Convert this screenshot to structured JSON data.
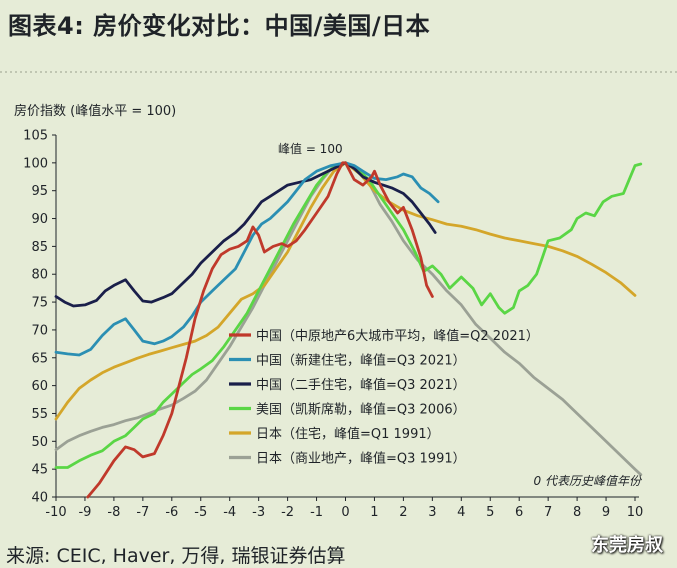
{
  "title": "图表4: 房价变化对比：中国/美国/日本",
  "source": "来源: CEIC, Haver, 万得, 瑞银证券估算",
  "watermark": "东莞房叔",
  "chart_data": {
    "type": "line",
    "title": "图表4: 房价变化对比：中国/美国/日本",
    "subtitle": "房价指数 (峰值水平 = 100)",
    "xlabel": "",
    "ylabel": "房价指数 (峰值水平 = 100)",
    "xlim": [
      -10,
      10
    ],
    "ylim": [
      40,
      105
    ],
    "xticks": [
      -10,
      -9,
      -8,
      -7,
      -6,
      -5,
      -4,
      -3,
      -2,
      -1,
      0,
      1,
      2,
      3,
      4,
      5,
      6,
      7,
      8,
      9,
      10
    ],
    "yticks": [
      40,
      45,
      50,
      55,
      60,
      65,
      70,
      75,
      80,
      85,
      90,
      95,
      100,
      105
    ],
    "grid": false,
    "legend_position": "center-bottom",
    "peak_label": "峰值 = 100",
    "note": "0 代表历史峰值年份",
    "series": [
      {
        "name": "中国（中原地产6大城市平均，峰值=Q2 2021）",
        "color": "#c0392b",
        "points": [
          [
            -8.9,
            40
          ],
          [
            -8.5,
            42.5
          ],
          [
            -8,
            46.5
          ],
          [
            -7.6,
            49
          ],
          [
            -7.3,
            48.5
          ],
          [
            -7,
            47.2
          ],
          [
            -6.6,
            47.8
          ],
          [
            -6.3,
            51
          ],
          [
            -6,
            55
          ],
          [
            -5.7,
            61
          ],
          [
            -5.5,
            65
          ],
          [
            -5.2,
            72
          ],
          [
            -4.9,
            77
          ],
          [
            -4.6,
            81
          ],
          [
            -4.3,
            83.5
          ],
          [
            -4,
            84.5
          ],
          [
            -3.7,
            85
          ],
          [
            -3.4,
            86
          ],
          [
            -3.2,
            88.5
          ],
          [
            -3,
            87
          ],
          [
            -2.8,
            84
          ],
          [
            -2.5,
            85
          ],
          [
            -2.2,
            85.5
          ],
          [
            -2,
            85
          ],
          [
            -1.7,
            86
          ],
          [
            -1.4,
            88
          ],
          [
            -1,
            91
          ],
          [
            -0.6,
            94
          ],
          [
            -0.3,
            98
          ],
          [
            -0.1,
            100
          ],
          [
            0,
            100
          ],
          [
            0.3,
            97
          ],
          [
            0.6,
            96
          ],
          [
            0.9,
            97.5
          ],
          [
            1,
            98.5
          ],
          [
            1.2,
            96
          ],
          [
            1.5,
            93
          ],
          [
            1.8,
            91
          ],
          [
            2,
            92
          ],
          [
            2.3,
            88
          ],
          [
            2.6,
            83
          ],
          [
            2.8,
            78
          ],
          [
            3,
            76
          ]
        ]
      },
      {
        "name": "中国（新建住宅，峰值=Q3 2021）",
        "color": "#2b8fb3",
        "points": [
          [
            -10,
            66
          ],
          [
            -9.6,
            65.7
          ],
          [
            -9.2,
            65.5
          ],
          [
            -8.8,
            66.5
          ],
          [
            -8.4,
            69
          ],
          [
            -8,
            71
          ],
          [
            -7.6,
            72
          ],
          [
            -7.3,
            70
          ],
          [
            -7,
            68
          ],
          [
            -6.6,
            67.5
          ],
          [
            -6.3,
            68
          ],
          [
            -6,
            68.8
          ],
          [
            -5.6,
            70.5
          ],
          [
            -5.3,
            72.5
          ],
          [
            -5,
            75
          ],
          [
            -4.6,
            77
          ],
          [
            -4.2,
            79
          ],
          [
            -3.8,
            81
          ],
          [
            -3.5,
            84
          ],
          [
            -3.2,
            87
          ],
          [
            -2.9,
            89
          ],
          [
            -2.6,
            90
          ],
          [
            -2.3,
            91.5
          ],
          [
            -2,
            93
          ],
          [
            -1.7,
            95
          ],
          [
            -1.4,
            97
          ],
          [
            -1,
            98.5
          ],
          [
            -0.5,
            99.5
          ],
          [
            0,
            100
          ],
          [
            0.3,
            99.5
          ],
          [
            0.6,
            98.5
          ],
          [
            1,
            97.2
          ],
          [
            1.4,
            97
          ],
          [
            1.8,
            97.5
          ],
          [
            2,
            98
          ],
          [
            2.3,
            97.5
          ],
          [
            2.6,
            95.5
          ],
          [
            2.9,
            94.5
          ],
          [
            3.2,
            93
          ]
        ]
      },
      {
        "name": "中国（二手住宅，峰值=Q3 2021）",
        "color": "#1a1f4a",
        "points": [
          [
            -10,
            76
          ],
          [
            -9.7,
            75
          ],
          [
            -9.4,
            74.3
          ],
          [
            -9,
            74.5
          ],
          [
            -8.6,
            75.3
          ],
          [
            -8.3,
            77
          ],
          [
            -8,
            78
          ],
          [
            -7.6,
            79
          ],
          [
            -7.3,
            77
          ],
          [
            -7,
            75.2
          ],
          [
            -6.7,
            75
          ],
          [
            -6.3,
            75.8
          ],
          [
            -6,
            76.5
          ],
          [
            -5.6,
            78.5
          ],
          [
            -5.3,
            80
          ],
          [
            -5,
            82
          ],
          [
            -4.6,
            84
          ],
          [
            -4.2,
            86
          ],
          [
            -3.8,
            87.5
          ],
          [
            -3.5,
            89
          ],
          [
            -3.2,
            91
          ],
          [
            -2.9,
            93
          ],
          [
            -2.6,
            94
          ],
          [
            -2.3,
            95
          ],
          [
            -2,
            96
          ],
          [
            -1.6,
            96.5
          ],
          [
            -1.2,
            97
          ],
          [
            -0.8,
            98
          ],
          [
            -0.4,
            99
          ],
          [
            0,
            100
          ],
          [
            0.3,
            99
          ],
          [
            0.6,
            97.5
          ],
          [
            1,
            96.5
          ],
          [
            1.3,
            96
          ],
          [
            1.6,
            95.5
          ],
          [
            2,
            94.5
          ],
          [
            2.3,
            93
          ],
          [
            2.6,
            91
          ],
          [
            2.9,
            89
          ],
          [
            3.1,
            87.5
          ]
        ]
      },
      {
        "name": "美国（凯斯席勒，峰值=Q3 2006）",
        "color": "#5ad645",
        "points": [
          [
            -10,
            45.3
          ],
          [
            -9.6,
            45.3
          ],
          [
            -9.2,
            46.5
          ],
          [
            -8.8,
            47.5
          ],
          [
            -8.4,
            48.3
          ],
          [
            -8,
            50
          ],
          [
            -7.6,
            51
          ],
          [
            -7.3,
            52.5
          ],
          [
            -7,
            54
          ],
          [
            -6.6,
            55
          ],
          [
            -6.3,
            57
          ],
          [
            -6,
            58.5
          ],
          [
            -5.6,
            60.5
          ],
          [
            -5.3,
            62
          ],
          [
            -5,
            63
          ],
          [
            -4.6,
            64.5
          ],
          [
            -4.2,
            67
          ],
          [
            -3.8,
            70
          ],
          [
            -3.4,
            73
          ],
          [
            -3,
            77
          ],
          [
            -2.6,
            81
          ],
          [
            -2.2,
            85
          ],
          [
            -1.8,
            89
          ],
          [
            -1.4,
            92.5
          ],
          [
            -1,
            96
          ],
          [
            -0.6,
            98.5
          ],
          [
            -0.3,
            99.5
          ],
          [
            0,
            100
          ],
          [
            0.4,
            99
          ],
          [
            0.8,
            97
          ],
          [
            1.2,
            94
          ],
          [
            1.6,
            91
          ],
          [
            2,
            88
          ],
          [
            2.4,
            84
          ],
          [
            2.7,
            80.5
          ],
          [
            3,
            81.5
          ],
          [
            3.3,
            80
          ],
          [
            3.6,
            77.5
          ],
          [
            4,
            79.5
          ],
          [
            4.4,
            77.5
          ],
          [
            4.7,
            74.5
          ],
          [
            5,
            76.5
          ],
          [
            5.3,
            74
          ],
          [
            5.5,
            73
          ],
          [
            5.8,
            74
          ],
          [
            6,
            77
          ],
          [
            6.3,
            78
          ],
          [
            6.6,
            80
          ],
          [
            6.8,
            83
          ],
          [
            7,
            86
          ],
          [
            7.4,
            86.5
          ],
          [
            7.8,
            88
          ],
          [
            8,
            90
          ],
          [
            8.3,
            91
          ],
          [
            8.6,
            90.5
          ],
          [
            8.9,
            93
          ],
          [
            9.2,
            94
          ],
          [
            9.6,
            94.5
          ],
          [
            9.8,
            97
          ],
          [
            10,
            99.5
          ],
          [
            10.2,
            99.8
          ]
        ]
      },
      {
        "name": "日本（住宅，峰值=Q1 1991）",
        "color": "#d4a62a",
        "points": [
          [
            -10,
            54
          ],
          [
            -9.6,
            57
          ],
          [
            -9.2,
            59.5
          ],
          [
            -8.8,
            61
          ],
          [
            -8.4,
            62.3
          ],
          [
            -8,
            63.3
          ],
          [
            -7.6,
            64.1
          ],
          [
            -7.2,
            64.9
          ],
          [
            -6.8,
            65.6
          ],
          [
            -6.4,
            66.2
          ],
          [
            -6,
            66.8
          ],
          [
            -5.6,
            67.4
          ],
          [
            -5.2,
            68
          ],
          [
            -4.8,
            69
          ],
          [
            -4.4,
            70.5
          ],
          [
            -4,
            73
          ],
          [
            -3.6,
            75.5
          ],
          [
            -3.2,
            76.5
          ],
          [
            -2.8,
            78
          ],
          [
            -2.4,
            81
          ],
          [
            -2,
            84
          ],
          [
            -1.6,
            88
          ],
          [
            -1.2,
            92
          ],
          [
            -0.8,
            95.5
          ],
          [
            -0.4,
            98.5
          ],
          [
            0,
            100
          ],
          [
            0.5,
            98
          ],
          [
            1,
            95
          ],
          [
            1.5,
            93
          ],
          [
            2,
            91.5
          ],
          [
            2.5,
            90.5
          ],
          [
            3,
            89.8
          ],
          [
            3.5,
            89
          ],
          [
            4,
            88.6
          ],
          [
            4.5,
            88
          ],
          [
            5,
            87.2
          ],
          [
            5.5,
            86.5
          ],
          [
            6,
            86
          ],
          [
            6.5,
            85.5
          ],
          [
            7,
            85
          ],
          [
            7.5,
            84.2
          ],
          [
            8,
            83.2
          ],
          [
            8.5,
            81.8
          ],
          [
            9,
            80.3
          ],
          [
            9.5,
            78.5
          ],
          [
            10,
            76.2
          ]
        ]
      },
      {
        "name": "日本（商业地产，峰值=Q3 1991）",
        "color": "#9ba195",
        "points": [
          [
            -10,
            48.5
          ],
          [
            -9.6,
            50
          ],
          [
            -9.2,
            51
          ],
          [
            -8.8,
            51.8
          ],
          [
            -8.4,
            52.5
          ],
          [
            -8,
            53
          ],
          [
            -7.6,
            53.7
          ],
          [
            -7.2,
            54.2
          ],
          [
            -6.8,
            55
          ],
          [
            -6.4,
            55.8
          ],
          [
            -6,
            56.5
          ],
          [
            -5.6,
            57.7
          ],
          [
            -5.2,
            59
          ],
          [
            -4.8,
            61
          ],
          [
            -4.4,
            64
          ],
          [
            -4,
            67
          ],
          [
            -3.6,
            70.5
          ],
          [
            -3.2,
            74
          ],
          [
            -2.8,
            78
          ],
          [
            -2.4,
            82
          ],
          [
            -2,
            86
          ],
          [
            -1.6,
            90
          ],
          [
            -1.2,
            94
          ],
          [
            -0.8,
            97
          ],
          [
            -0.4,
            99.5
          ],
          [
            0,
            100
          ],
          [
            0.4,
            99
          ],
          [
            0.8,
            96.5
          ],
          [
            1.2,
            92.5
          ],
          [
            1.6,
            89.5
          ],
          [
            2,
            86
          ],
          [
            2.5,
            82.5
          ],
          [
            3,
            80
          ],
          [
            3.5,
            77
          ],
          [
            4,
            74.5
          ],
          [
            4.5,
            71
          ],
          [
            5,
            68.5
          ],
          [
            5.5,
            66
          ],
          [
            6,
            64
          ],
          [
            6.5,
            61.5
          ],
          [
            7,
            59.5
          ],
          [
            7.5,
            57.5
          ],
          [
            8,
            55
          ],
          [
            8.5,
            52.5
          ],
          [
            9,
            50
          ],
          [
            9.5,
            47.5
          ],
          [
            10,
            45
          ],
          [
            10.2,
            44
          ]
        ]
      }
    ]
  }
}
